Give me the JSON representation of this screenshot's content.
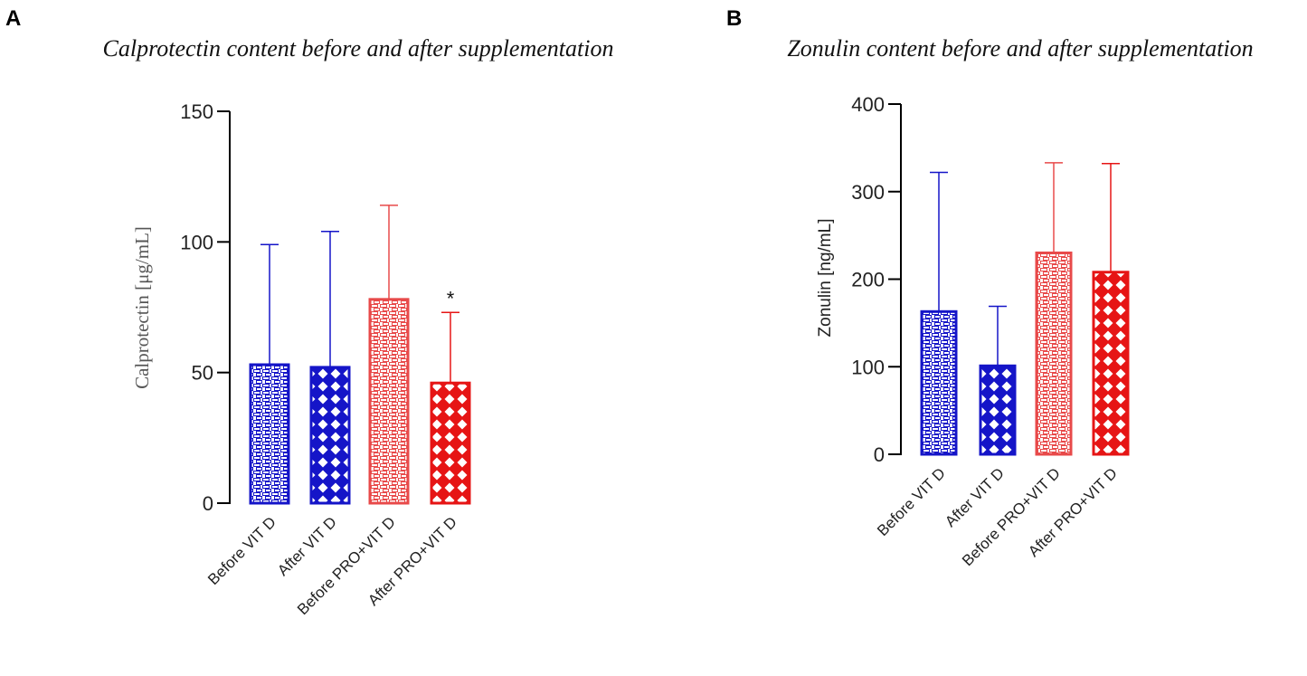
{
  "panels": [
    {
      "letter": "A",
      "chart_data": {
        "type": "bar",
        "title": "Calprotectin content before and after supplementation",
        "xlabel": "",
        "ylabel": "Calprotectin [μg/mL]",
        "ylim": [
          0,
          150
        ],
        "yticks": [
          0,
          50,
          100,
          150
        ],
        "categories": [
          "Before VIT D",
          "After VIT D",
          "Before PRO+VIT D",
          "After PRO+VIT D"
        ],
        "values": [
          53,
          52,
          78,
          46
        ],
        "error_upper": [
          99,
          104,
          114,
          73
        ],
        "colors": [
          "#1515c8",
          "#1515c8",
          "#e84a4a",
          "#e61515"
        ],
        "patterns": [
          "brick",
          "diamond",
          "brick",
          "diamond"
        ],
        "annotations": [
          {
            "category": "After PRO+VIT D",
            "text": "*"
          }
        ]
      }
    },
    {
      "letter": "B",
      "chart_data": {
        "type": "bar",
        "title": "Zonulin content before and after supplementation",
        "xlabel": "",
        "ylabel": "Zonulin [ng/mL]",
        "ylim": [
          0,
          400
        ],
        "yticks": [
          0,
          100,
          200,
          300,
          400
        ],
        "categories": [
          "Before VIT D",
          "After VIT D",
          "Before PRO+VIT D",
          "After PRO+VIT D"
        ],
        "values": [
          163,
          101,
          230,
          208
        ],
        "error_upper": [
          322,
          169,
          333,
          332
        ],
        "colors": [
          "#1515c8",
          "#1515c8",
          "#e84a4a",
          "#e61515"
        ],
        "patterns": [
          "brick",
          "diamond",
          "brick",
          "diamond"
        ],
        "annotations": []
      }
    }
  ]
}
